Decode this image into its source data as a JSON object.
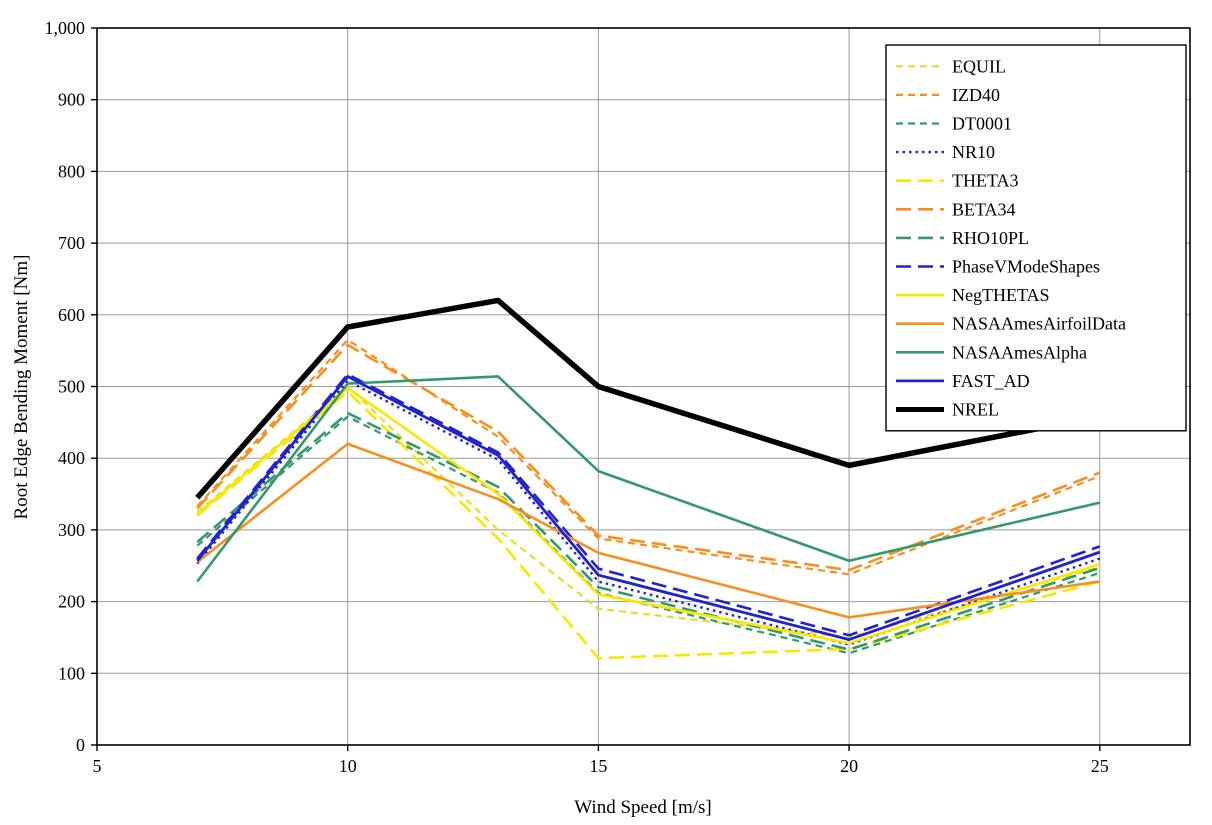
{
  "chart_data": {
    "type": "line",
    "title": "",
    "xlabel": "Wind Speed [m/s]",
    "ylabel": "Root Edge Bending Moment [Nm]",
    "xlim": [
      5,
      26.8
    ],
    "ylim": [
      0,
      1000
    ],
    "xtick_values": [
      5,
      10,
      15,
      20,
      25
    ],
    "xtick_labels": [
      "5",
      "10",
      "15",
      "20",
      "25"
    ],
    "ytick_values": [
      0,
      100,
      200,
      300,
      400,
      500,
      600,
      700,
      800,
      900,
      1000
    ],
    "ytick_labels": [
      "0",
      "100",
      "200",
      "300",
      "400",
      "500",
      "600",
      "700",
      "800",
      "900",
      "1,000"
    ],
    "grid": true,
    "legend_position": "top-right-inside",
    "x": [
      7,
      10,
      13,
      15,
      20,
      25
    ],
    "series": [
      {
        "name": "EQUIL",
        "color": "#E8DC2A",
        "dash": "short",
        "width": 2.2,
        "values": [
          325,
          500,
          300,
          190,
          150,
          248
        ]
      },
      {
        "name": "IZD40",
        "color": "#F78F1E",
        "dash": "short",
        "width": 2.2,
        "values": [
          333,
          565,
          430,
          288,
          238,
          375
        ]
      },
      {
        "name": "DT0001",
        "color": "#33996B",
        "dash": "short",
        "width": 2.2,
        "values": [
          278,
          458,
          352,
          212,
          128,
          240
        ]
      },
      {
        "name": "NR10",
        "color": "#2222CC",
        "dash": "dot",
        "width": 2.4,
        "values": [
          253,
          508,
          398,
          228,
          140,
          260
        ]
      },
      {
        "name": "THETA3",
        "color": "#F7E800",
        "dash": "long",
        "width": 2.6,
        "values": [
          320,
          493,
          288,
          121,
          134,
          228
        ]
      },
      {
        "name": "BETA34",
        "color": "#F78F1E",
        "dash": "long",
        "width": 2.6,
        "values": [
          330,
          558,
          437,
          292,
          244,
          380
        ]
      },
      {
        "name": "RHO10PL",
        "color": "#33996B",
        "dash": "long",
        "width": 2.6,
        "values": [
          283,
          463,
          360,
          220,
          133,
          247
        ]
      },
      {
        "name": "PhaseVModeShapes",
        "color": "#2222CC",
        "dash": "long",
        "width": 2.6,
        "values": [
          260,
          517,
          408,
          246,
          153,
          277
        ]
      },
      {
        "name": "NegTHETAS",
        "color": "#F7E800",
        "dash": "solid",
        "width": 2.6,
        "values": [
          322,
          498,
          350,
          210,
          142,
          252
        ]
      },
      {
        "name": "NASAAmesAirfoilData",
        "color": "#F78F1E",
        "dash": "solid",
        "width": 2.6,
        "values": [
          255,
          420,
          343,
          268,
          178,
          228
        ]
      },
      {
        "name": "NASAAmesAlpha",
        "color": "#33996B",
        "dash": "solid",
        "width": 2.6,
        "values": [
          228,
          504,
          514,
          382,
          257,
          338
        ]
      },
      {
        "name": "FAST_AD",
        "color": "#2222CC",
        "dash": "solid",
        "width": 2.8,
        "values": [
          257,
          514,
          404,
          237,
          147,
          269
        ]
      },
      {
        "name": "NREL",
        "color": "#000000",
        "dash": "solid",
        "width": 5.5,
        "values": [
          345,
          583,
          620,
          500,
          390,
          458
        ]
      }
    ]
  }
}
